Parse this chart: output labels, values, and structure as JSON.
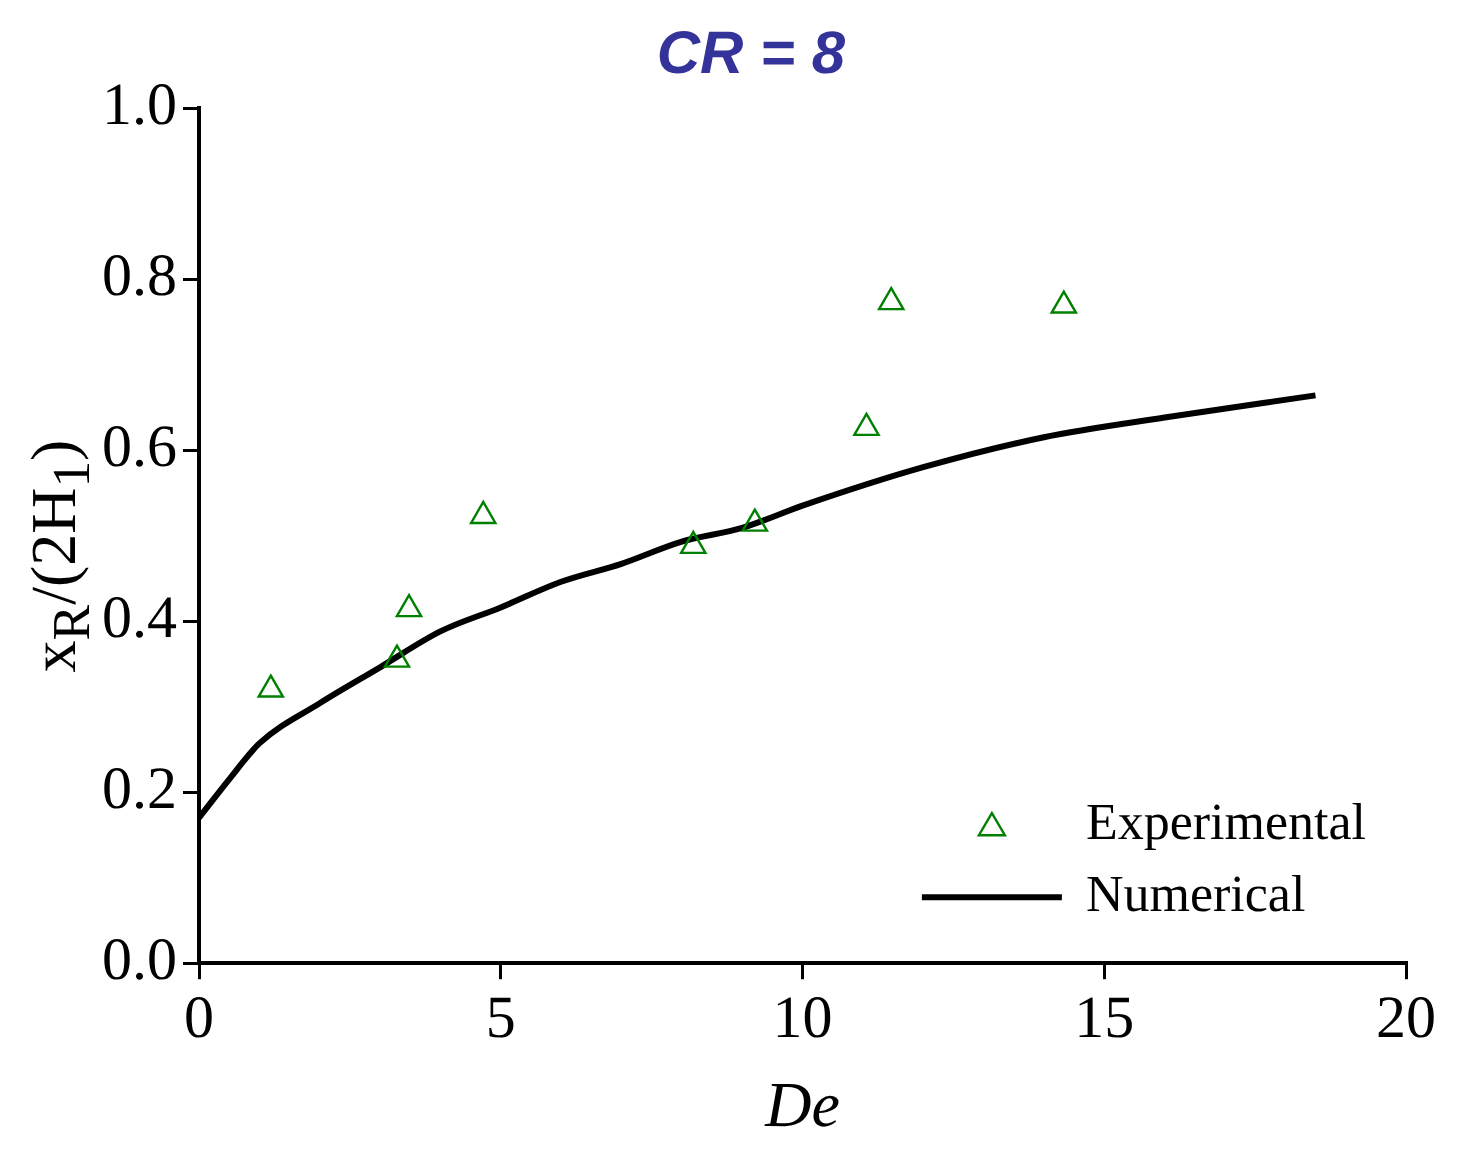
{
  "chart_data": {
    "type": "scatter",
    "title": "CR = 8",
    "xlabel": "De",
    "ylabel": "x$_{R}$/(2H$_{1}$)",
    "xlim": [
      0,
      20
    ],
    "xticks": [
      0,
      5,
      10,
      15,
      20
    ],
    "ylim": [
      0,
      1
    ],
    "yticks": [
      {
        "value": 0,
        "label": "0.0"
      },
      {
        "value": 0.2,
        "label": "0.2"
      },
      {
        "value": 0.4,
        "label": "0.4"
      },
      {
        "value": 0.6,
        "label": "0.6"
      },
      {
        "value": 0.8,
        "label": "0.8"
      },
      {
        "value": 1,
        "label": "1.0"
      }
    ],
    "grid": false,
    "legend": "bottom right",
    "series": [
      {
        "name": "Experimental",
        "marker": "triangle",
        "color": "#008000",
        "x": [
          1.19,
          3.28,
          3.48,
          4.71,
          8.19,
          9.21,
          11.06,
          11.47,
          14.33
        ],
        "values": [
          0.32,
          0.355,
          0.414,
          0.523,
          0.488,
          0.514,
          0.626,
          0.773,
          0.769
        ]
      },
      {
        "name": "Numerical",
        "type": "line",
        "marker": "none",
        "line_style": "solid",
        "color": "#000000",
        "x": [
          0,
          0.5,
          1,
          2,
          3,
          4,
          5,
          6,
          7,
          8,
          9,
          10,
          12,
          14,
          16,
          18.5
        ],
        "values": [
          0.17,
          0.215,
          0.257,
          0.304,
          0.346,
          0.388,
          0.416,
          0.446,
          0.467,
          0.493,
          0.509,
          0.535,
          0.58,
          0.615,
          0.638,
          0.664
        ]
      }
    ]
  }
}
